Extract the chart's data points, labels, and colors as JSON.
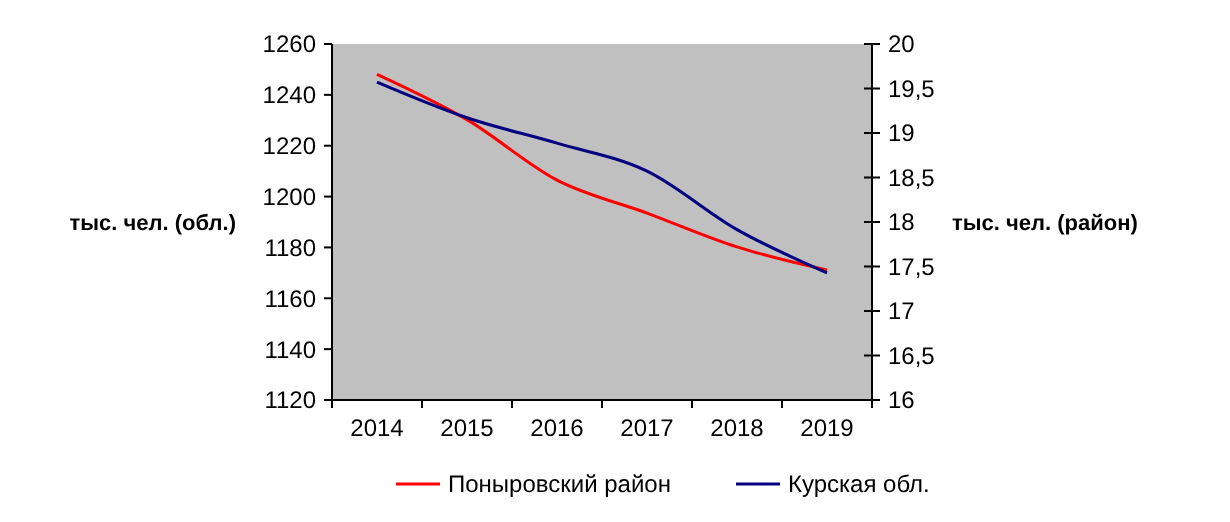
{
  "chart_data": {
    "type": "line",
    "categories": [
      "2014",
      "2015",
      "2016",
      "2017",
      "2018",
      "2019"
    ],
    "ylabel": "тыс. чел. (обл.)",
    "y2label": "тыс. чел. (район)",
    "ylim": [
      1120,
      1260
    ],
    "yticks": [
      1120,
      1140,
      1160,
      1180,
      1200,
      1220,
      1240,
      1260
    ],
    "y2lim": [
      16,
      20
    ],
    "y2ticks": [
      16,
      {
        "value": 16.5,
        "label": "16,5"
      },
      17,
      {
        "value": 17.5,
        "label": "17,5"
      },
      18,
      {
        "value": 18.5,
        "label": "18,5"
      },
      19,
      {
        "value": 19.5,
        "label": "19,5"
      },
      20
    ],
    "series": [
      {
        "name": "Поныровский район",
        "color": "#ff0000",
        "axis": "y2",
        "values": [
          19.66,
          19.15,
          18.47,
          18.1,
          17.72,
          17.46
        ]
      },
      {
        "name": "Курская обл.",
        "color": "#000080",
        "axis": "y",
        "values": [
          1245,
          1231,
          1221,
          1210,
          1187,
          1170
        ]
      }
    ],
    "legend": "bottom",
    "grid": false,
    "marker": "none",
    "line_style": "solid"
  }
}
